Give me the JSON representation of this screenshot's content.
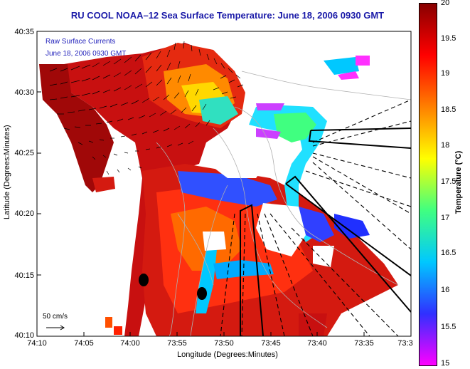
{
  "title": "RU COOL  NOAA–12  Sea Surface Temperature:  June 18, 2006 0930 GMT",
  "map": {
    "overlay_line1": "Raw Surface Currents",
    "overlay_line2": "June 18, 2006 0930 GMT",
    "scale_label": "50 cm/s",
    "y_axis_label": "Latitude (Degrees:Minutes)",
    "x_axis_label": "Longitude (Degrees:Minutes)",
    "y_ticks": [
      "40:35",
      "40:30",
      "40:25",
      "40:20",
      "40:15",
      "40:10"
    ],
    "x_ticks": [
      "74:10",
      "74:05",
      "74:00",
      "73:55",
      "73:50",
      "73:45",
      "73:40",
      "73:35",
      "73:3"
    ],
    "land_color": "#ffffff",
    "nodata_color": "#ffffff"
  },
  "colorbar": {
    "label": "Temperature (°C)",
    "ticks": [
      "20",
      "19.5",
      "19",
      "18.5",
      "18",
      "17.5",
      "17",
      "16.5",
      "16",
      "15.5",
      "15"
    ],
    "range": [
      15,
      20
    ],
    "colors": [
      "#ff00ff",
      "#3030ff",
      "#00c8ff",
      "#40ff80",
      "#ffff00",
      "#ff8000",
      "#ff0000",
      "#880000"
    ]
  }
}
